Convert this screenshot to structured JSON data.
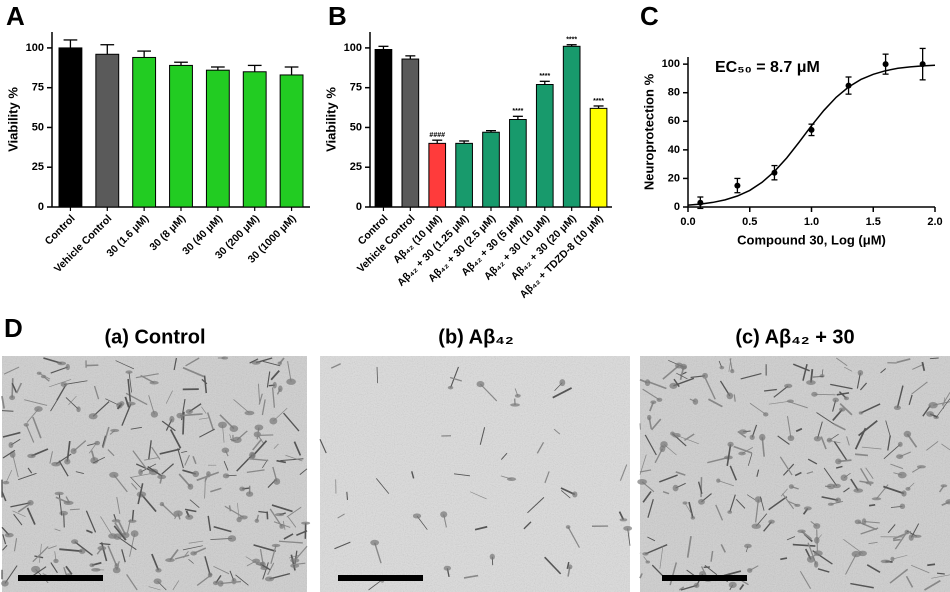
{
  "chart_data": [
    {
      "panel": "A",
      "type": "bar",
      "ylabel": "Viability %",
      "categories": [
        "Control",
        "Vehicle Control",
        "30 (1.6 μM)",
        "30 (8 μM)",
        "30 (40 μM)",
        "30 (200 μM)",
        "30 (1000 μM)"
      ],
      "values": [
        100,
        96,
        94,
        89,
        86,
        85,
        83
      ],
      "errors": [
        5,
        6,
        4,
        2,
        2,
        4,
        5
      ],
      "colors": [
        "#000000",
        "#5a5a5a",
        "#22cc22",
        "#22cc22",
        "#22cc22",
        "#22cc22",
        "#22cc22"
      ],
      "ylim": [
        0,
        110
      ],
      "yticks": [
        0,
        25,
        50,
        75,
        100
      ]
    },
    {
      "panel": "B",
      "type": "bar",
      "ylabel": "Viability %",
      "categories": [
        "Control",
        "Vehicle Control",
        "Aβ₄₂ (10 μM)",
        "Aβ₄₂ + 30 (1.25 μM)",
        "Aβ₄₂ + 30 (2.5 μM)",
        "Aβ₄₂ + 30 (5 μM)",
        "Aβ₄₂ + 30 (10 μM)",
        "Aβ₄₂ + 30 (20 μM)",
        "Aβ₄₂ + TDZD-8 (10 μM)"
      ],
      "values": [
        99,
        93,
        40,
        40,
        47,
        55,
        77,
        101,
        62
      ],
      "errors": [
        2,
        2,
        2,
        1.5,
        1,
        2,
        2,
        1,
        1.5
      ],
      "bar_labels": [
        null,
        null,
        "####",
        null,
        null,
        "****",
        "****",
        "****",
        "****"
      ],
      "colors": [
        "#000000",
        "#5a5a5a",
        "#ff3b3b",
        "#189a6c",
        "#189a6c",
        "#189a6c",
        "#189a6c",
        "#189a6c",
        "#ffff00"
      ],
      "ylim": [
        0,
        110
      ],
      "yticks": [
        0,
        25,
        50,
        75,
        100
      ]
    },
    {
      "panel": "C",
      "type": "scatter",
      "xlabel": "Compound 30, Log (μM)",
      "ylabel": "Neuroprotection %",
      "annotation": "EC₅₀ = 8.7 μM",
      "color": "#000000",
      "x": [
        0.1,
        0.4,
        0.7,
        1.0,
        1.3,
        1.6,
        1.9
      ],
      "values": [
        3,
        15,
        24,
        54,
        85,
        100,
        100
      ],
      "errors": [
        4,
        5,
        5,
        4,
        6,
        7,
        11
      ],
      "fit": {
        "x": [
          0,
          0.1,
          0.2,
          0.3,
          0.4,
          0.5,
          0.6,
          0.7,
          0.8,
          0.9,
          1.0,
          1.1,
          1.2,
          1.3,
          1.4,
          1.5,
          1.6,
          1.7,
          1.8,
          1.9,
          2.0
        ],
        "values": [
          1.3,
          2.0,
          3.2,
          5.0,
          7.7,
          11.6,
          17.3,
          24.9,
          34.4,
          45.4,
          56.9,
          67.6,
          76.8,
          84.0,
          89.3,
          92.9,
          95.4,
          97.1,
          98.1,
          98.8,
          99.2
        ]
      },
      "xlim": [
        0,
        2
      ],
      "xticks": [
        {
          "value": 0,
          "label": "0.0"
        },
        0.5,
        {
          "value": 1,
          "label": "1.0"
        },
        1.5,
        {
          "value": 2,
          "label": "2.0"
        }
      ],
      "ylim": [
        0,
        105
      ],
      "yticks": [
        0,
        20,
        40,
        60,
        80,
        100
      ]
    }
  ],
  "panel_d": {
    "label": "D",
    "images": [
      {
        "caption": "(a) Control"
      },
      {
        "caption": "(b) Aβ₄₂"
      },
      {
        "caption": "(c) Aβ₄₂ + 30"
      }
    ]
  }
}
